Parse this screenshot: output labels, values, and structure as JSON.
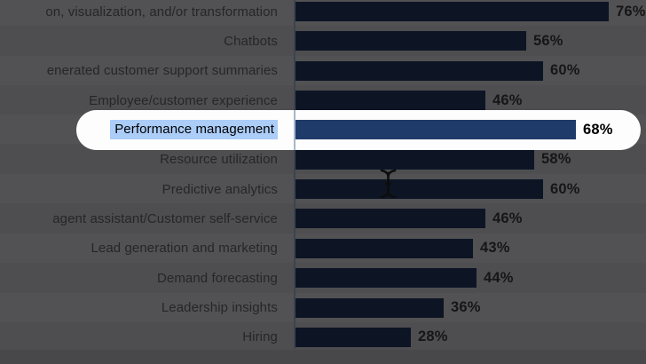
{
  "chart_data": {
    "type": "bar",
    "orientation": "horizontal",
    "title": "",
    "xlabel": "",
    "ylabel": "",
    "unit": "%",
    "xlim": [
      0,
      100
    ],
    "grid": false,
    "categories": [
      "on, visualization, and/or transformation",
      "Chatbots",
      "enerated customer support summaries",
      "Employee/customer experience",
      "Performance management",
      "Resource utilization",
      "Predictive analytics",
      "agent assistant/Customer self-service",
      "Lead generation and marketing",
      "Demand forecasting",
      "Leadership insights",
      "Hiring"
    ],
    "values": [
      76,
      56,
      60,
      46,
      68,
      58,
      60,
      46,
      43,
      44,
      36,
      28
    ],
    "value_labels": [
      "76%",
      "56%",
      "60%",
      "46%",
      "68%",
      "58%",
      "60%",
      "46%",
      "43%",
      "44%",
      "36%",
      "28%"
    ],
    "highlighted_category": "Performance management",
    "highlight_index": 4
  },
  "overlay": {
    "spotlight_shape": "white-pill-around-highlighted-row",
    "text_selection": "Performance management",
    "cursor": "i-beam-text-cursor"
  },
  "colors": {
    "background_dimmed": "#4e4e50",
    "bar": "#0d1525",
    "bar_highlighted": "#1f3b6a",
    "axis_line": "#3c434f",
    "axis_line_in_spotlight": "#a5b8ca",
    "label_text": "#262626",
    "value_text": "#161616",
    "spotlight_fill": "#fdfdfd",
    "selection_highlight": "#abcdf8"
  }
}
